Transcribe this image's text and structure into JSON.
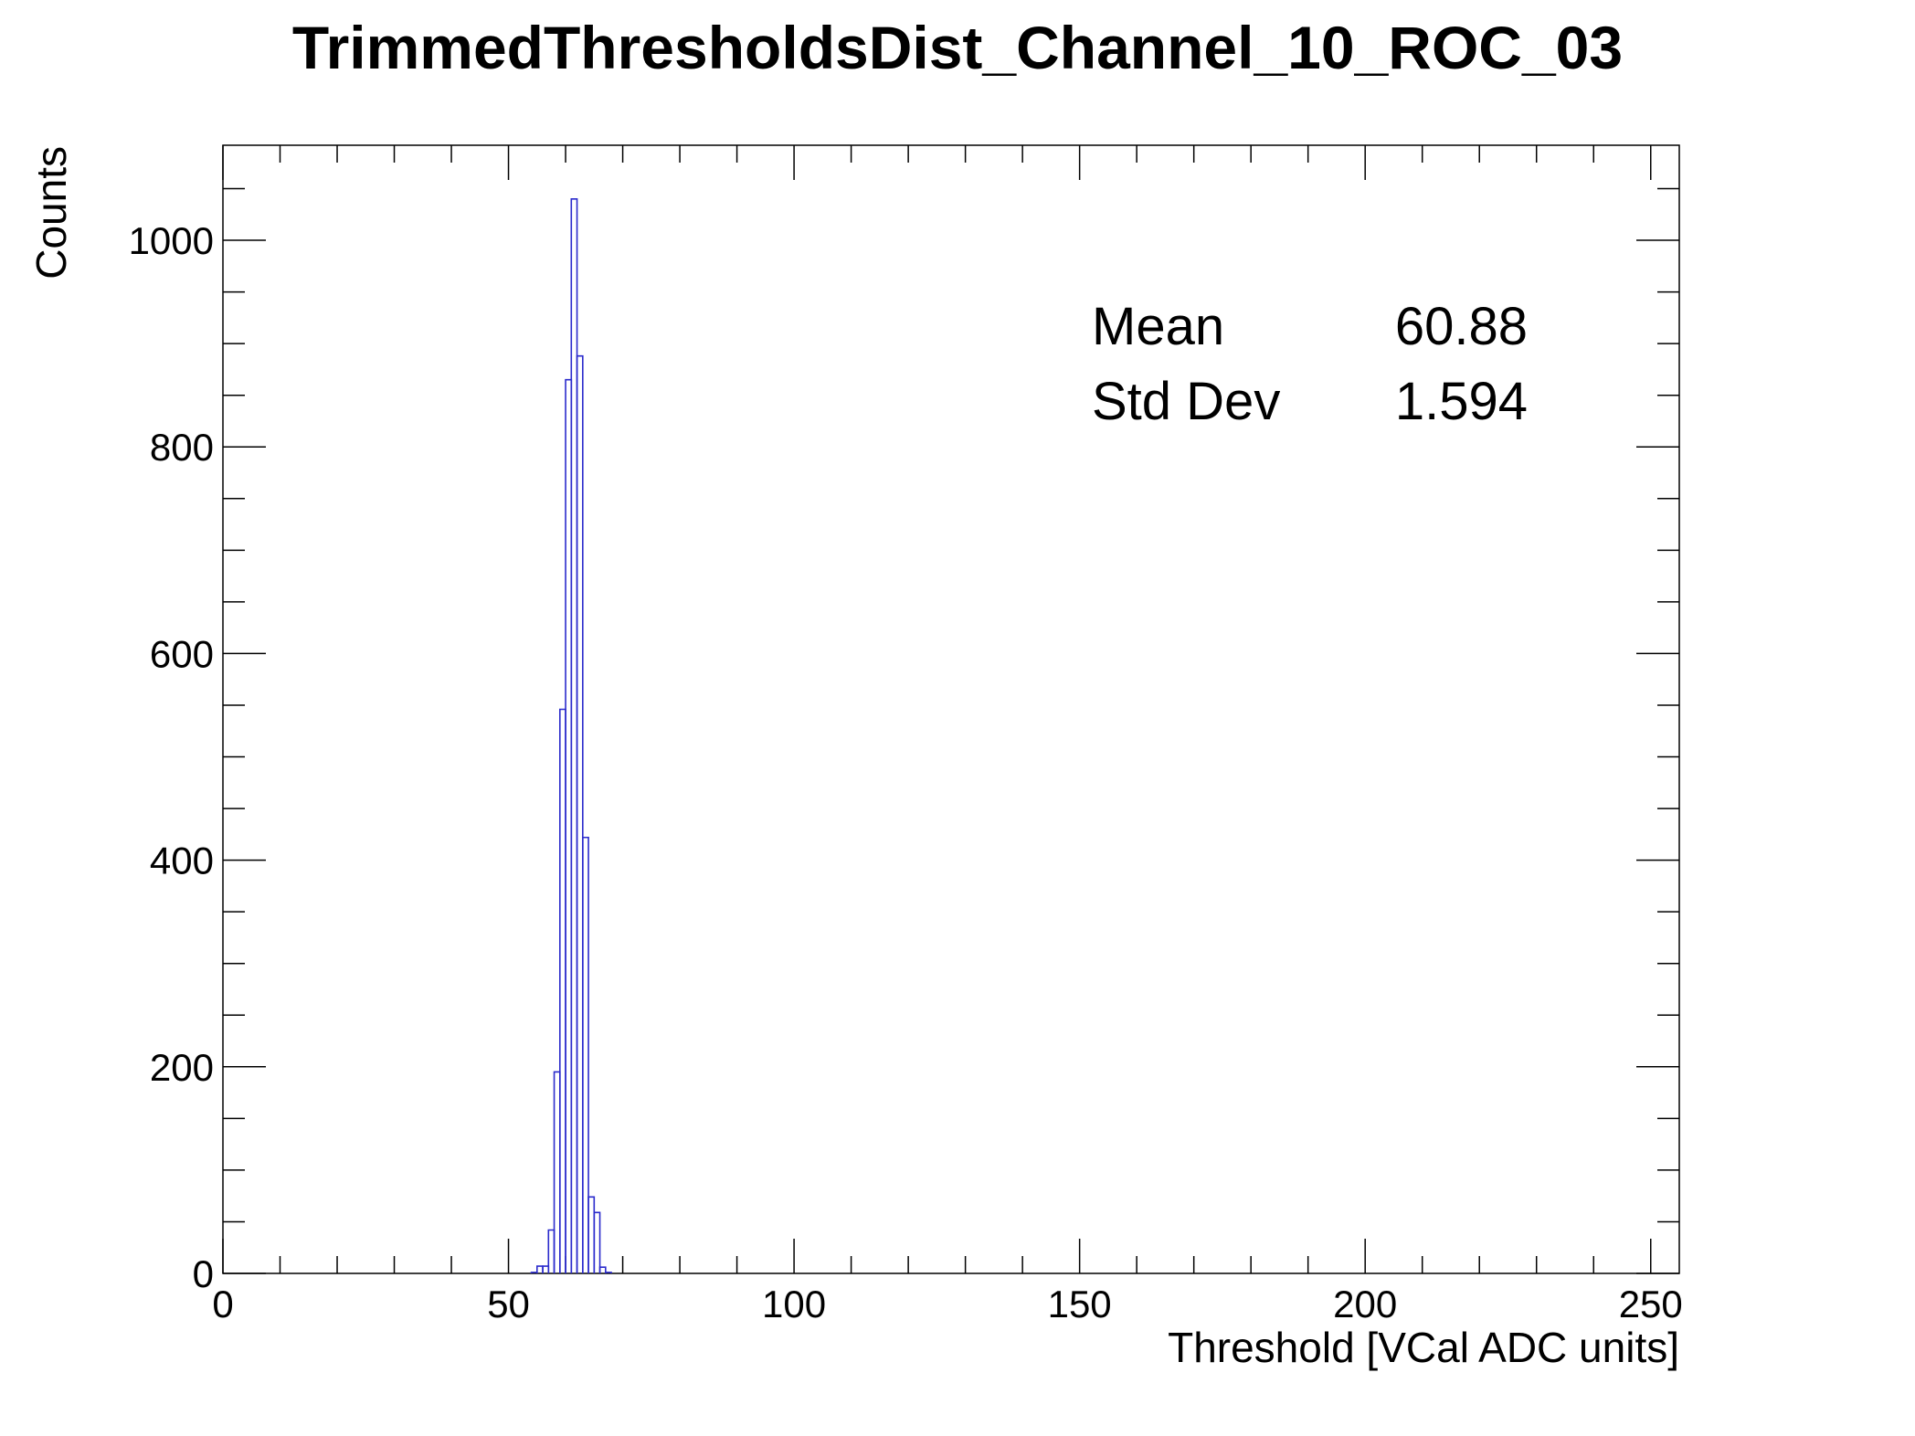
{
  "chart_data": {
    "type": "bar",
    "title": "TrimmedThresholdsDist_Channel_10_ROC_03",
    "xlabel": "Threshold [VCal ADC units]",
    "ylabel": "Counts",
    "xlim": [
      0,
      255
    ],
    "ylim": [
      0,
      1092
    ],
    "x_ticks": [
      0,
      50,
      100,
      150,
      200,
      250
    ],
    "y_ticks": [
      0,
      200,
      400,
      600,
      800,
      1000
    ],
    "bin_width": 1,
    "bins": [
      {
        "x": 54,
        "count": 1
      },
      {
        "x": 55,
        "count": 7
      },
      {
        "x": 56,
        "count": 7
      },
      {
        "x": 57,
        "count": 42
      },
      {
        "x": 58,
        "count": 195
      },
      {
        "x": 59,
        "count": 546
      },
      {
        "x": 60,
        "count": 865
      },
      {
        "x": 61,
        "count": 1040
      },
      {
        "x": 62,
        "count": 888
      },
      {
        "x": 63,
        "count": 422
      },
      {
        "x": 64,
        "count": 74
      },
      {
        "x": 65,
        "count": 59
      },
      {
        "x": 66,
        "count": 6
      },
      {
        "x": 67,
        "count": 1
      }
    ],
    "line_color": "#2b2bcc",
    "grid": false
  },
  "stats": [
    {
      "label": "Mean",
      "value": "60.88"
    },
    {
      "label": "Std Dev",
      "value": "1.594"
    }
  ]
}
